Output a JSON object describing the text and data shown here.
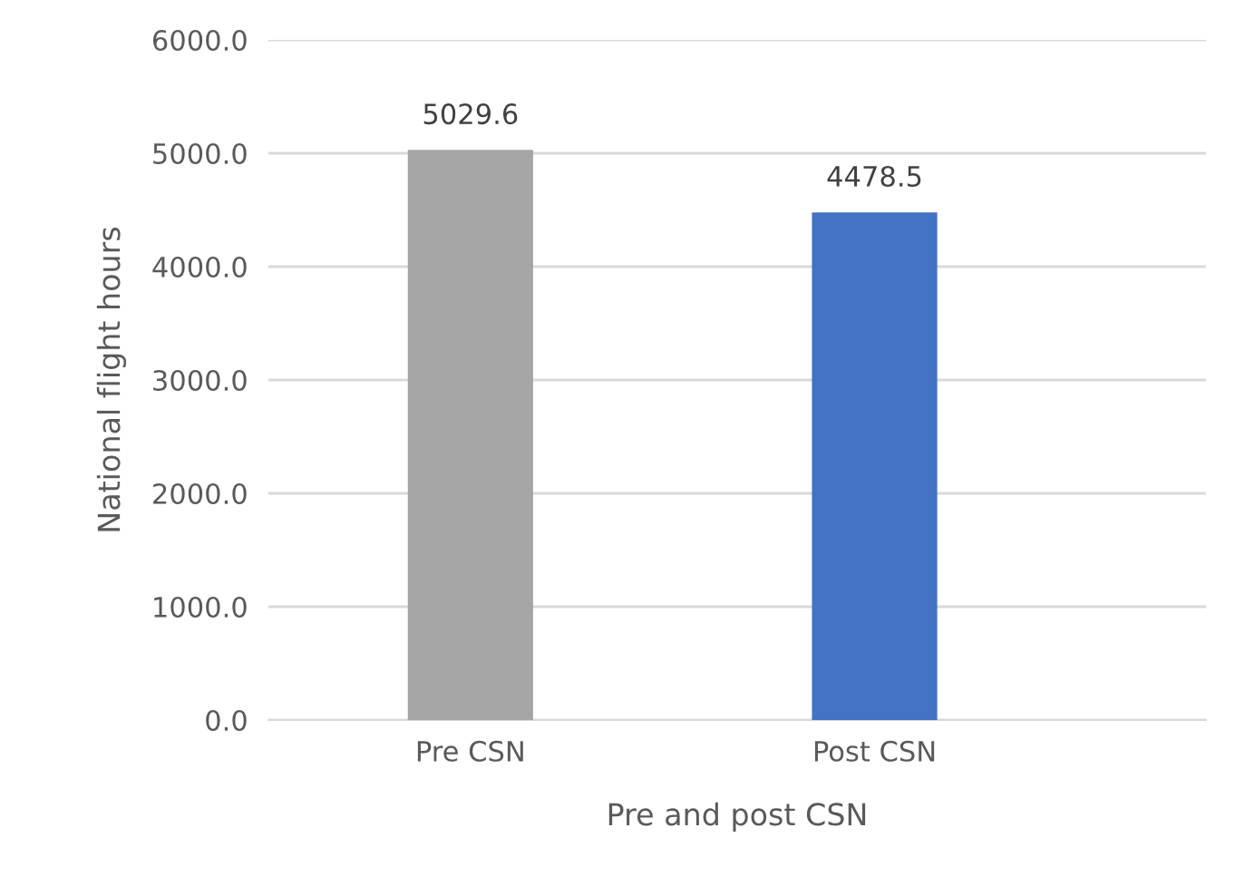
{
  "chart_data": {
    "type": "bar",
    "xlabel": "Pre and post CSN",
    "ylabel": "National flight hours",
    "categories": [
      "Pre CSN",
      "Post CSN"
    ],
    "values": [
      5029.6,
      4478.5
    ],
    "colors": [
      "#a5a5a5",
      "#4472c4"
    ],
    "ylim": [
      0,
      6000
    ],
    "yticks": [
      {
        "value": 0,
        "label": "0.0"
      },
      {
        "value": 1000,
        "label": "1000.0"
      },
      {
        "value": 2000,
        "label": "2000.0"
      },
      {
        "value": 3000,
        "label": "3000.0"
      },
      {
        "value": 4000,
        "label": "4000.0"
      },
      {
        "value": 5000,
        "label": "5000.0"
      },
      {
        "value": 6000,
        "label": "6000.0"
      }
    ],
    "grid": "y",
    "data_labels": true
  }
}
